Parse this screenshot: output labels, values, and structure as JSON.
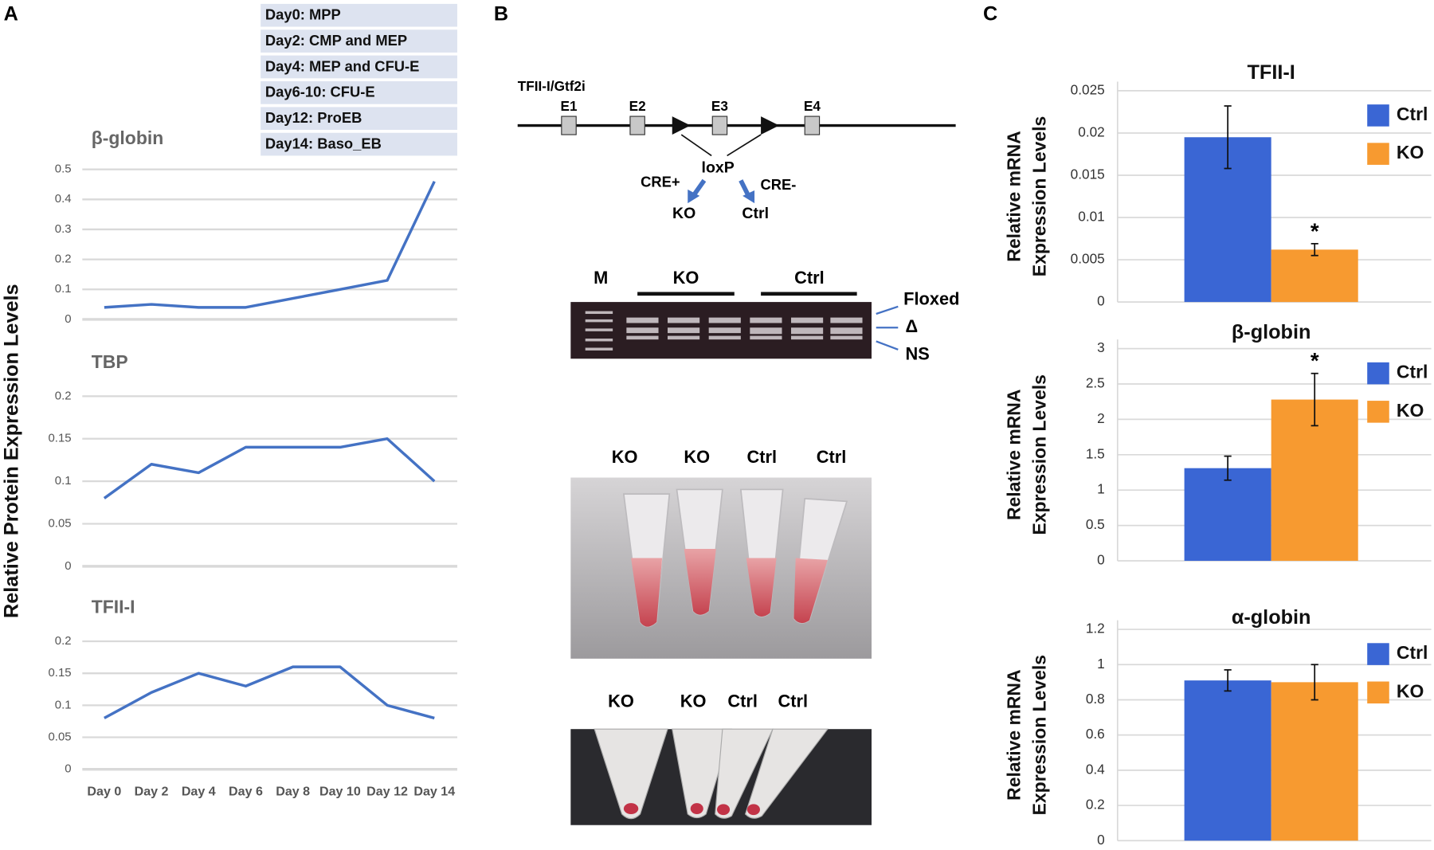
{
  "panel_labels": [
    "A",
    "B",
    "C"
  ],
  "day_key": [
    "Day0: MPP",
    "Day2: CMP and MEP",
    "Day4: MEP and CFU-E",
    "Day6-10: CFU-E",
    "Day12: ProEB",
    "Day14: Baso_EB"
  ],
  "panel_a_ylabel": "Relative Protein Expression Levels",
  "gene_diagram": {
    "gene": "TFII-I/Gtf2i",
    "exons": [
      "E1",
      "E2",
      "E3",
      "E4"
    ],
    "site": "loxP",
    "left_arrow": "CRE+",
    "right_arrow": "CRE-",
    "left_result": "KO",
    "right_result": "Ctrl"
  },
  "gel": {
    "marker": "M",
    "groups": [
      "KO",
      "Ctrl"
    ],
    "bands": [
      "Floxed",
      "Δ",
      "NS"
    ]
  },
  "photos": [
    {
      "labels": [
        "KO",
        "KO",
        "Ctrl",
        "Ctrl"
      ]
    },
    {
      "labels": [
        "KO",
        "KO",
        "Ctrl",
        "Ctrl"
      ]
    }
  ],
  "chart_data": [
    {
      "type": "line",
      "title": "β-globin",
      "color": "#4472c4",
      "values": [
        0.04,
        0.05,
        0.04,
        0.04,
        0.07,
        0.1,
        0.13,
        0.46
      ],
      "ylim": [
        0,
        0.5
      ],
      "yticks": [
        0,
        0.1,
        0.2,
        0.3,
        0.4,
        0.5
      ],
      "grid": true
    },
    {
      "type": "line",
      "title": "TBP",
      "color": "#4472c4",
      "values": [
        0.08,
        0.12,
        0.11,
        0.14,
        0.14,
        0.14,
        0.15,
        0.1
      ],
      "ylim": [
        0,
        0.2
      ],
      "yticks": [
        0,
        0.05,
        0.1,
        0.15,
        0.2
      ],
      "grid": true
    },
    {
      "type": "line",
      "title": "TFII-I",
      "color": "#4472c4",
      "categories": [
        "Day 0",
        "Day 2",
        "Day 4",
        "Day 6",
        "Day 8",
        "Day 10",
        "Day 12",
        "Day 14"
      ],
      "values": [
        0.08,
        0.12,
        0.15,
        0.13,
        0.16,
        0.16,
        0.1,
        0.08
      ],
      "ylim": [
        0,
        0.2
      ],
      "yticks": [
        0,
        0.05,
        0.1,
        0.15,
        0.2
      ],
      "grid": true
    },
    {
      "type": "bar",
      "title": "TFII-I",
      "ylabel": [
        "Relative mRNA",
        "Expression Levels"
      ],
      "categories": [
        null
      ],
      "series": [
        {
          "name": "Ctrl",
          "color": "#3a66d4",
          "values": [
            0.0195
          ],
          "errors": [
            0.0037
          ]
        },
        {
          "name": "KO",
          "color": "#f79a30",
          "values": [
            0.0062
          ],
          "errors": [
            0.0007
          ]
        }
      ],
      "annotation": "*",
      "ylim": [
        0,
        0.025
      ],
      "yticks": [
        0,
        0.005,
        0.01,
        0.015,
        0.02,
        0.025
      ],
      "grid": true,
      "legend": "upper right"
    },
    {
      "type": "bar",
      "title": "β-globin",
      "ylabel": [
        "Relative mRNA",
        "Expression Levels"
      ],
      "categories": [
        null
      ],
      "series": [
        {
          "name": "Ctrl",
          "color": "#3a66d4",
          "values": [
            1.31
          ],
          "errors": [
            0.17
          ]
        },
        {
          "name": "KO",
          "color": "#f79a30",
          "values": [
            2.28
          ],
          "errors": [
            0.37
          ]
        }
      ],
      "annotation": "*",
      "ylim": [
        0,
        3
      ],
      "yticks": [
        0,
        0.5,
        1,
        1.5,
        2,
        2.5,
        3
      ],
      "grid": true,
      "legend": "upper right"
    },
    {
      "type": "bar",
      "title": "α-globin",
      "ylabel": [
        "Relative mRNA",
        "Expression Levels"
      ],
      "categories": [
        null
      ],
      "series": [
        {
          "name": "Ctrl",
          "color": "#3a66d4",
          "values": [
            0.91
          ],
          "errors": [
            0.06
          ]
        },
        {
          "name": "KO",
          "color": "#f79a30",
          "values": [
            0.9
          ],
          "errors": [
            0.1
          ]
        }
      ],
      "ylim": [
        0,
        1.2
      ],
      "yticks": [
        0,
        0.2,
        0.4,
        0.6,
        0.8,
        1,
        1.2
      ],
      "grid": true,
      "legend": "upper right"
    }
  ]
}
